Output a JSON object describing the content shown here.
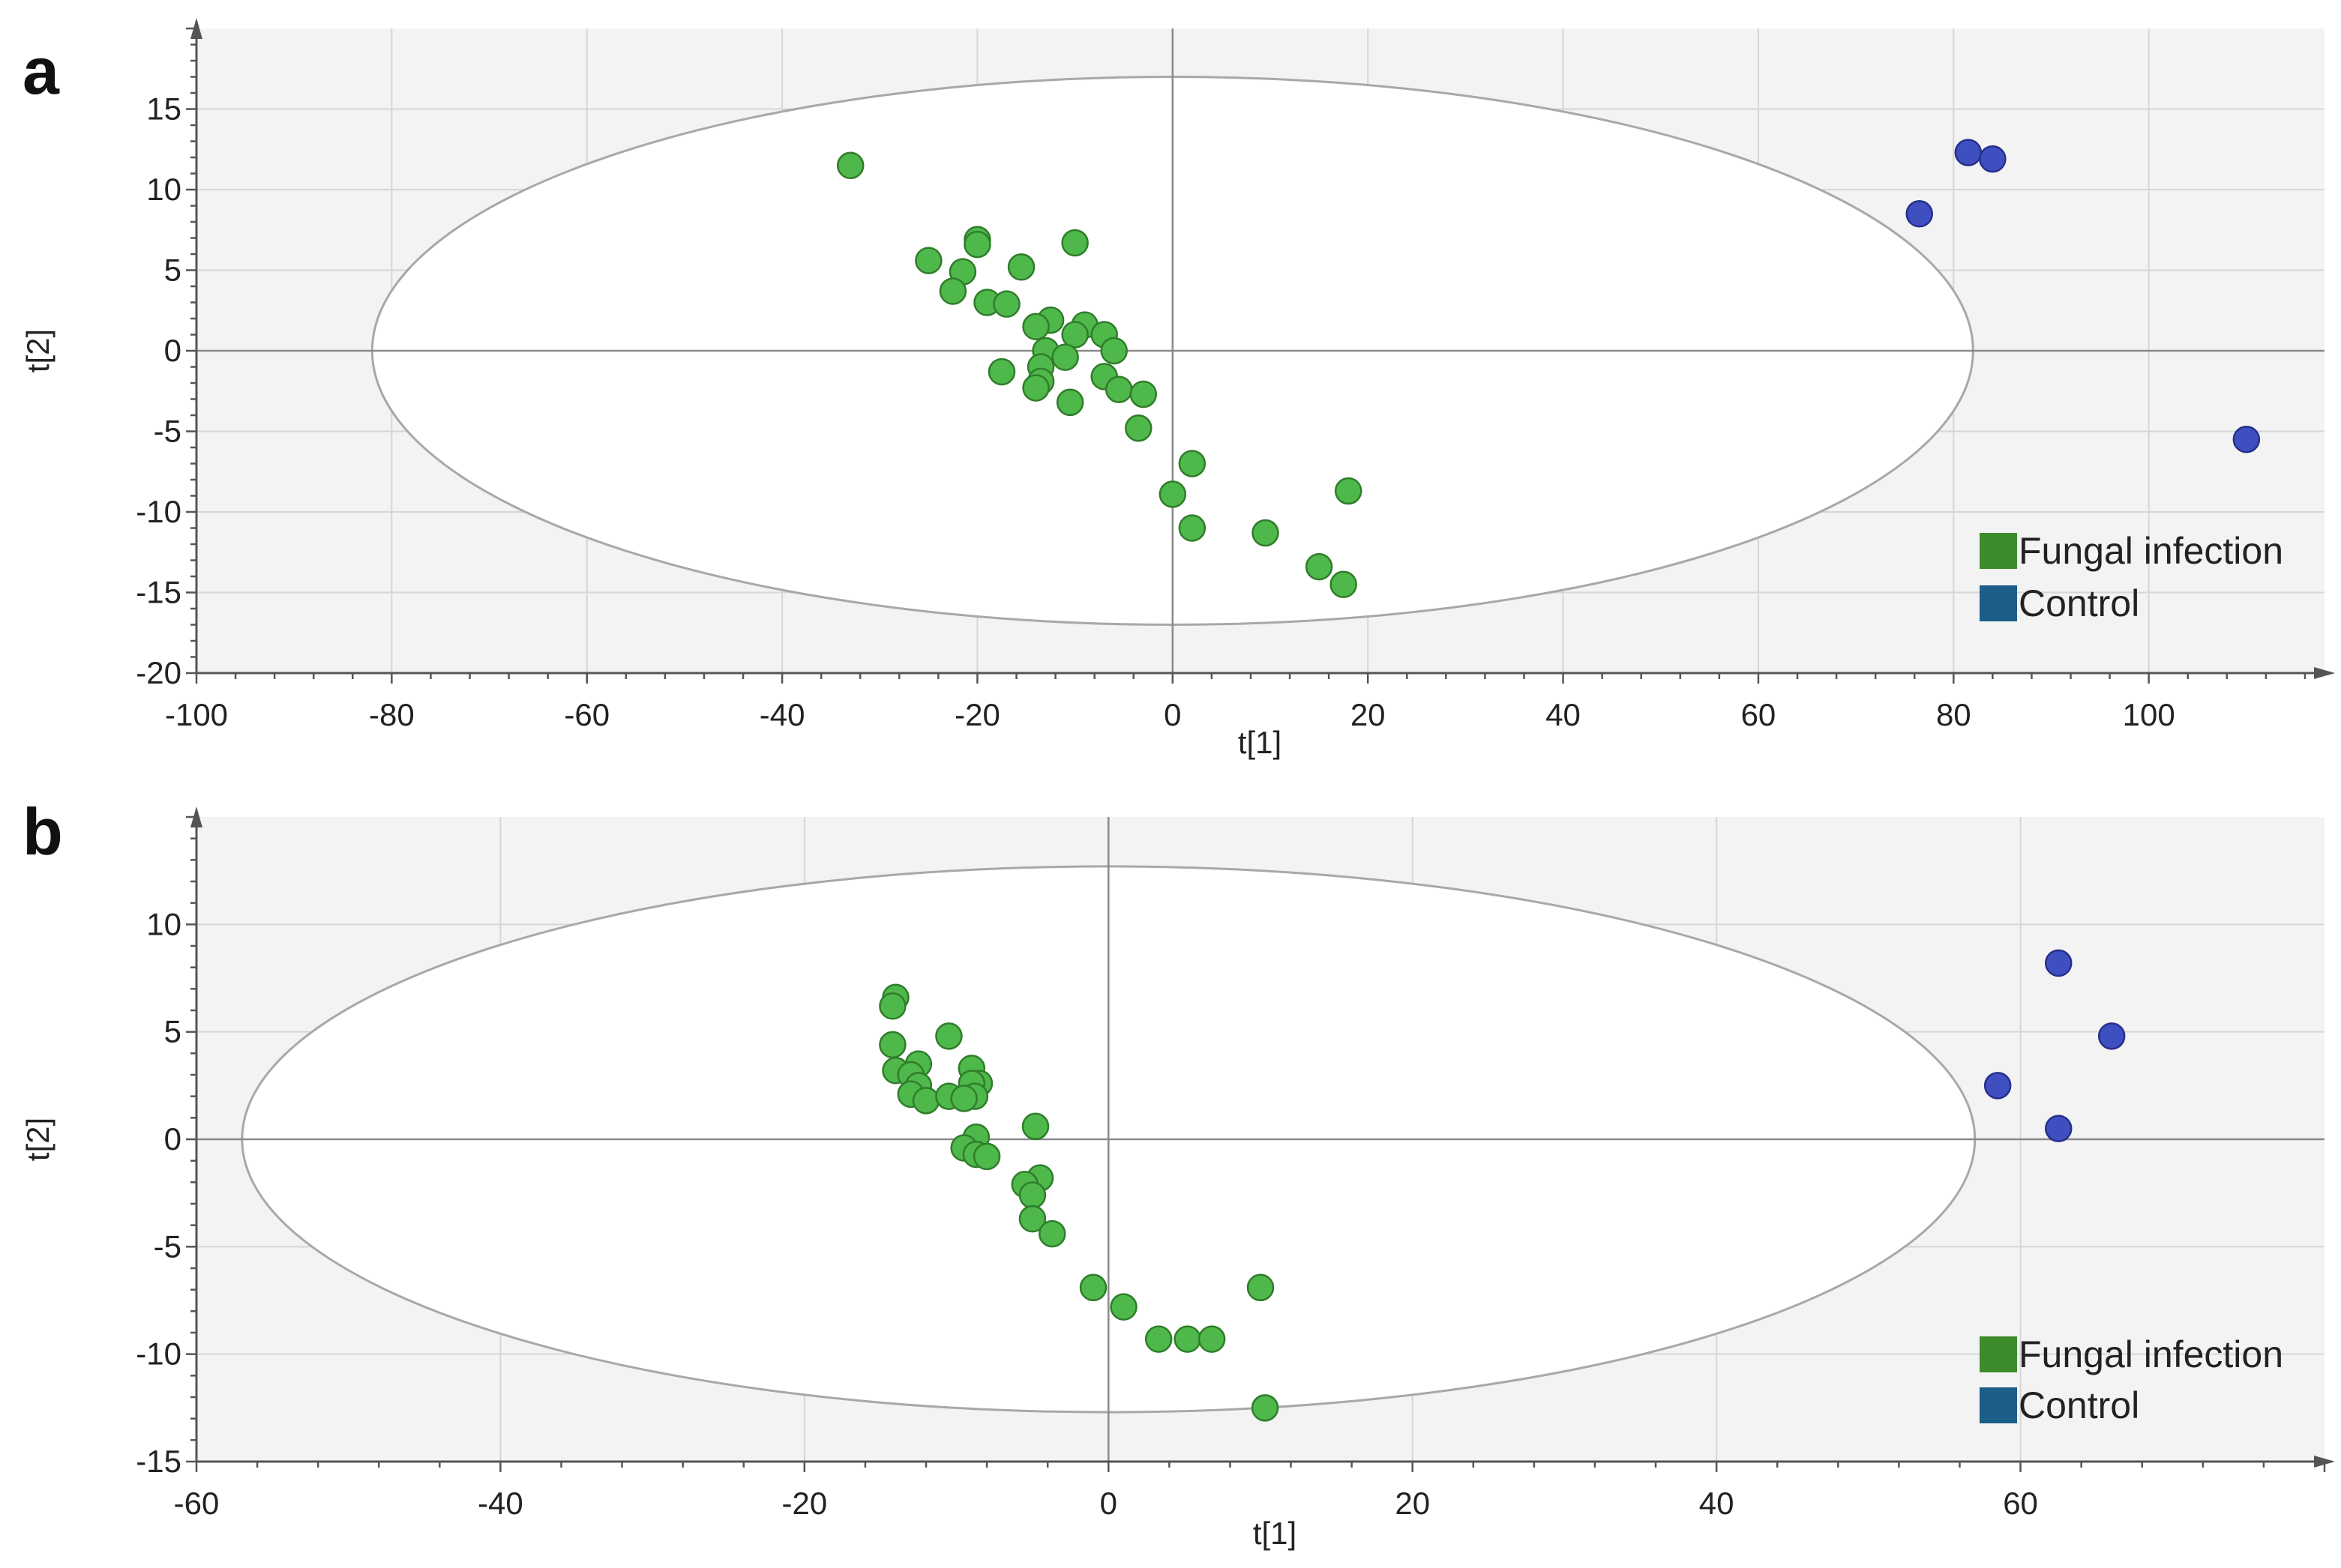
{
  "chart_data": [
    {
      "type": "scatter",
      "panel_label": "a",
      "xlabel": "t[1]",
      "ylabel": "t[2]",
      "xlim": [
        -100,
        118
      ],
      "ylim": [
        -20,
        20
      ],
      "x_ticks": [
        -100,
        -80,
        -60,
        -40,
        -20,
        0,
        20,
        40,
        60,
        80,
        100
      ],
      "y_ticks": [
        -20,
        -15,
        -10,
        -5,
        0,
        5,
        10,
        15
      ],
      "x_tick_labels": [
        "-100",
        "-80",
        "-60",
        "-40",
        "-20",
        "0",
        "20",
        "40",
        "60",
        "80",
        "100"
      ],
      "y_tick_labels": [
        "-20",
        "-15",
        "-10",
        "-5",
        "0",
        "5",
        "10",
        "15"
      ],
      "grid": true,
      "confidence_ellipse": {
        "center": [
          0,
          0
        ],
        "rx": 82,
        "ry": 17
      },
      "legend_position": "bottom-right",
      "legend": [
        {
          "label": "Fungal infection",
          "color": "#3d8b2a"
        },
        {
          "label": "Control",
          "color": "#1b5e87"
        }
      ],
      "series": [
        {
          "name": "Fungal infection",
          "color": "#4fb84b",
          "points": [
            [
              -33,
              11.5
            ],
            [
              -25,
              5.6
            ],
            [
              -20,
              6.9
            ],
            [
              -20,
              6.6
            ],
            [
              -10,
              6.7
            ],
            [
              -21.5,
              4.9
            ],
            [
              -15.5,
              5.2
            ],
            [
              -22.5,
              3.7
            ],
            [
              -19,
              3.0
            ],
            [
              -17,
              2.9
            ],
            [
              -12.5,
              1.9
            ],
            [
              -14,
              1.5
            ],
            [
              -9,
              1.6
            ],
            [
              -10,
              1.0
            ],
            [
              -7,
              1.0
            ],
            [
              -6,
              0.0
            ],
            [
              -13,
              0.0
            ],
            [
              -11,
              -0.4
            ],
            [
              -13.5,
              -1.0
            ],
            [
              -17.5,
              -1.3
            ],
            [
              -7,
              -1.6
            ],
            [
              -13.5,
              -1.9
            ],
            [
              -14,
              -2.3
            ],
            [
              -5.5,
              -2.4
            ],
            [
              -3,
              -2.7
            ],
            [
              -10.5,
              -3.2
            ],
            [
              -3.5,
              -4.8
            ],
            [
              2,
              -7.0
            ],
            [
              0,
              -8.9
            ],
            [
              2,
              -11.0
            ],
            [
              18,
              -8.7
            ],
            [
              9.5,
              -11.3
            ],
            [
              15,
              -13.4
            ],
            [
              17.5,
              -14.5
            ]
          ]
        },
        {
          "name": "Control",
          "color": "#3f4fc0",
          "points": [
            [
              76.5,
              8.5
            ],
            [
              81.5,
              12.3
            ],
            [
              84,
              11.9
            ],
            [
              110,
              -5.5
            ]
          ]
        }
      ]
    },
    {
      "type": "scatter",
      "panel_label": "b",
      "xlabel": "t[1]",
      "ylabel": "t[2]",
      "xlim": [
        -60,
        80
      ],
      "ylim": [
        -15,
        15
      ],
      "x_ticks": [
        -60,
        -40,
        -20,
        0,
        20,
        40,
        60
      ],
      "y_ticks": [
        -15,
        -10,
        -5,
        0,
        5,
        10
      ],
      "x_tick_labels": [
        "-60",
        "-40",
        "-20",
        "0",
        "20",
        "40",
        "60"
      ],
      "y_tick_labels": [
        "-15",
        "-10",
        "-5",
        "0",
        "5",
        "10"
      ],
      "grid": true,
      "confidence_ellipse": {
        "center": [
          0,
          0
        ],
        "rx": 57,
        "ry": 12.7
      },
      "legend_position": "bottom-right",
      "legend": [
        {
          "label": "Fungal infection",
          "color": "#3d8b2a"
        },
        {
          "label": "Control",
          "color": "#1b5e87"
        }
      ],
      "series": [
        {
          "name": "Fungal infection",
          "color": "#4fb84b",
          "points": [
            [
              -14,
              6.6
            ],
            [
              -14.2,
              6.2
            ],
            [
              -10.5,
              4.8
            ],
            [
              -14.2,
              4.4
            ],
            [
              -14,
              3.2
            ],
            [
              -12.5,
              3.5
            ],
            [
              -13,
              3.0
            ],
            [
              -9,
              3.3
            ],
            [
              -12.5,
              2.5
            ],
            [
              -8.5,
              2.6
            ],
            [
              -9,
              2.6
            ],
            [
              -13,
              2.1
            ],
            [
              -12,
              1.8
            ],
            [
              -10.5,
              2.0
            ],
            [
              -8.8,
              2.0
            ],
            [
              -9.5,
              1.9
            ],
            [
              -4.8,
              0.6
            ],
            [
              -8.7,
              0.1
            ],
            [
              -9.5,
              -0.4
            ],
            [
              -8.7,
              -0.7
            ],
            [
              -8,
              -0.8
            ],
            [
              -4.5,
              -1.8
            ],
            [
              -5.5,
              -2.1
            ],
            [
              -5,
              -2.6
            ],
            [
              -5,
              -3.7
            ],
            [
              -3.7,
              -4.4
            ],
            [
              -1,
              -6.9
            ],
            [
              1,
              -7.8
            ],
            [
              3.3,
              -9.3
            ],
            [
              5.2,
              -9.3
            ],
            [
              6.8,
              -9.3
            ],
            [
              10,
              -6.9
            ],
            [
              10.3,
              -12.5
            ]
          ]
        },
        {
          "name": "Control",
          "color": "#3f4fc0",
          "points": [
            [
              58.5,
              2.5
            ],
            [
              62.5,
              8.2
            ],
            [
              62.5,
              0.5
            ],
            [
              66,
              4.8
            ]
          ]
        }
      ]
    }
  ]
}
